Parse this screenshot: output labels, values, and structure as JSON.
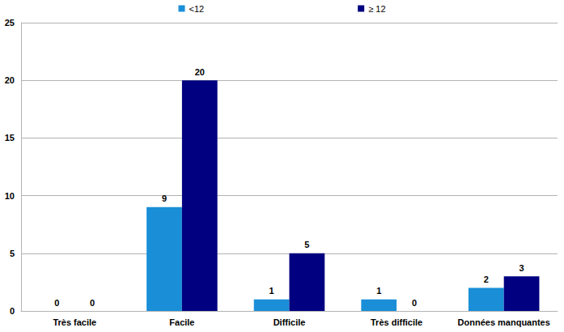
{
  "chart_data": {
    "type": "bar",
    "categories": [
      "Très facile",
      "Facile",
      "Difficile",
      "Très difficile",
      "Données manquantes"
    ],
    "series": [
      {
        "name": "<12",
        "color": "#1a8fd8",
        "values": [
          0,
          9,
          1,
          1,
          2
        ]
      },
      {
        "name": "≥ 12",
        "color": "#000080",
        "values": [
          0,
          20,
          5,
          0,
          3
        ]
      }
    ],
    "ylim": [
      0,
      25
    ],
    "yticks": [
      0,
      5,
      10,
      15,
      20,
      25
    ],
    "grid": true,
    "legend": "top",
    "data_labels": true
  }
}
